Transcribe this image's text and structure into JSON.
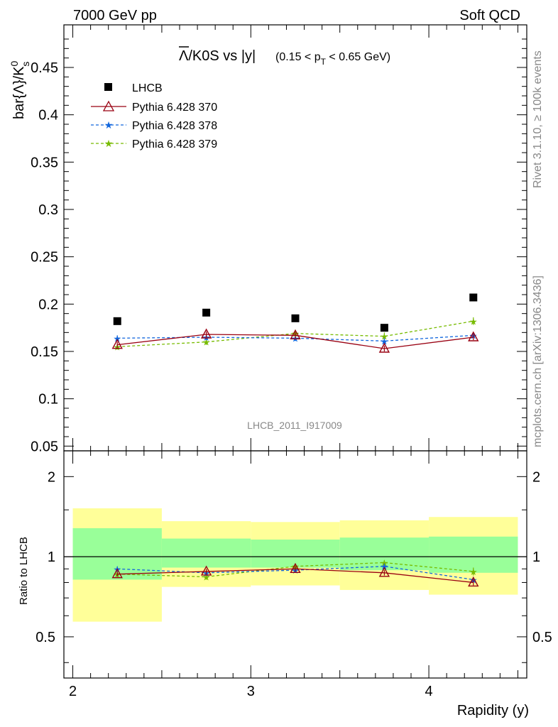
{
  "header": {
    "left": "7000 GeV pp",
    "right": "Soft QCD"
  },
  "side_text": {
    "rivet": "Rivet 3.1.10, ≥ 100k events",
    "mcplots": "mcplots.cern.ch [arXiv:1306.3436]"
  },
  "colors": {
    "lhcb": "#000000",
    "p370": "#990011",
    "p378": "#1166dd",
    "p379": "#77bb00",
    "band_inner": "#99ff99",
    "band_outer": "#ffff99"
  },
  "chart_data": [
    {
      "type": "scatter",
      "title": "Λ̅/K0S vs |y| (0.15 < p_T < 0.65 GeV)",
      "title_parts": {
        "lambda_bar": "Λ",
        "rest": "/K0S vs |y|",
        "range_open": "(0.15 < p",
        "range_sub": "T",
        "range_close": " < 0.65 GeV)"
      },
      "ylabel": "bar{Λ}/K⁰s",
      "ylabel_parts": {
        "main": "bar{Λ}/K",
        "sup": "0",
        "sub": "s"
      },
      "xlim": [
        1.95,
        4.55
      ],
      "ylim": [
        0.045,
        0.495
      ],
      "y_ticks": [
        0.05,
        0.1,
        0.15,
        0.2,
        0.25,
        0.3,
        0.35,
        0.4,
        0.45
      ],
      "y_tick_labels": [
        "0.05",
        "0.1",
        "0.15",
        "0.2",
        "0.25",
        "0.3",
        "0.35",
        "0.4",
        "0.45"
      ],
      "x": [
        2.25,
        2.75,
        3.25,
        3.75,
        4.25
      ],
      "watermark": "LHCB_2011_I917009",
      "legend_position": "top-left",
      "series": [
        {
          "name": "LHCB",
          "style": "data",
          "values": [
            0.182,
            0.191,
            0.185,
            0.175,
            0.207
          ]
        },
        {
          "name": "Pythia 6.428 370",
          "style": "solid-triangle",
          "values": [
            0.157,
            0.168,
            0.167,
            0.153,
            0.165
          ],
          "errors": [
            0.003,
            0.003,
            0.003,
            0.003,
            0.003
          ]
        },
        {
          "name": "Pythia 6.428 378",
          "style": "dashed-star",
          "values": [
            0.164,
            0.165,
            0.164,
            0.161,
            0.167
          ],
          "errors": [
            0.003,
            0.003,
            0.003,
            0.003,
            0.003
          ]
        },
        {
          "name": "Pythia 6.428 379",
          "style": "dashed-star",
          "values": [
            0.155,
            0.16,
            0.169,
            0.166,
            0.182
          ],
          "errors": [
            0.003,
            0.003,
            0.004,
            0.004,
            0.004
          ]
        }
      ]
    },
    {
      "type": "line",
      "ylabel": "Ratio to LHCB",
      "xlabel": "Rapidity (y)",
      "xlim": [
        1.95,
        4.55
      ],
      "ylim": [
        0.35,
        2.5
      ],
      "y_scale": "log",
      "y_ticks": [
        0.5,
        1,
        2
      ],
      "y_tick_labels": [
        "0.5",
        "1",
        "2"
      ],
      "x_ticks": [
        2,
        3,
        4
      ],
      "x_tick_labels": [
        "2",
        "3",
        "4"
      ],
      "x": [
        2.25,
        2.75,
        3.25,
        3.75,
        4.25
      ],
      "bins": [
        [
          2.0,
          2.5
        ],
        [
          2.5,
          3.0
        ],
        [
          3.0,
          3.5
        ],
        [
          3.5,
          4.0
        ],
        [
          4.0,
          4.5
        ]
      ],
      "band_inner": [
        [
          0.82,
          1.28
        ],
        [
          0.91,
          1.17
        ],
        [
          0.91,
          1.16
        ],
        [
          0.89,
          1.18
        ],
        [
          0.87,
          1.19
        ]
      ],
      "band_outer": [
        [
          0.57,
          1.52
        ],
        [
          0.77,
          1.36
        ],
        [
          0.78,
          1.35
        ],
        [
          0.75,
          1.37
        ],
        [
          0.72,
          1.41
        ]
      ],
      "series": [
        {
          "name": "Pythia 6.428 370",
          "values": [
            0.86,
            0.88,
            0.9,
            0.87,
            0.8
          ],
          "errors": [
            0.02,
            0.02,
            0.02,
            0.02,
            0.02
          ]
        },
        {
          "name": "Pythia 6.428 378",
          "values": [
            0.9,
            0.87,
            0.89,
            0.92,
            0.82
          ],
          "errors": [
            0.02,
            0.02,
            0.02,
            0.02,
            0.02
          ]
        },
        {
          "name": "Pythia 6.428 379",
          "values": [
            0.86,
            0.84,
            0.92,
            0.95,
            0.88
          ],
          "errors": [
            0.02,
            0.02,
            0.02,
            0.02,
            0.03
          ]
        }
      ]
    }
  ]
}
